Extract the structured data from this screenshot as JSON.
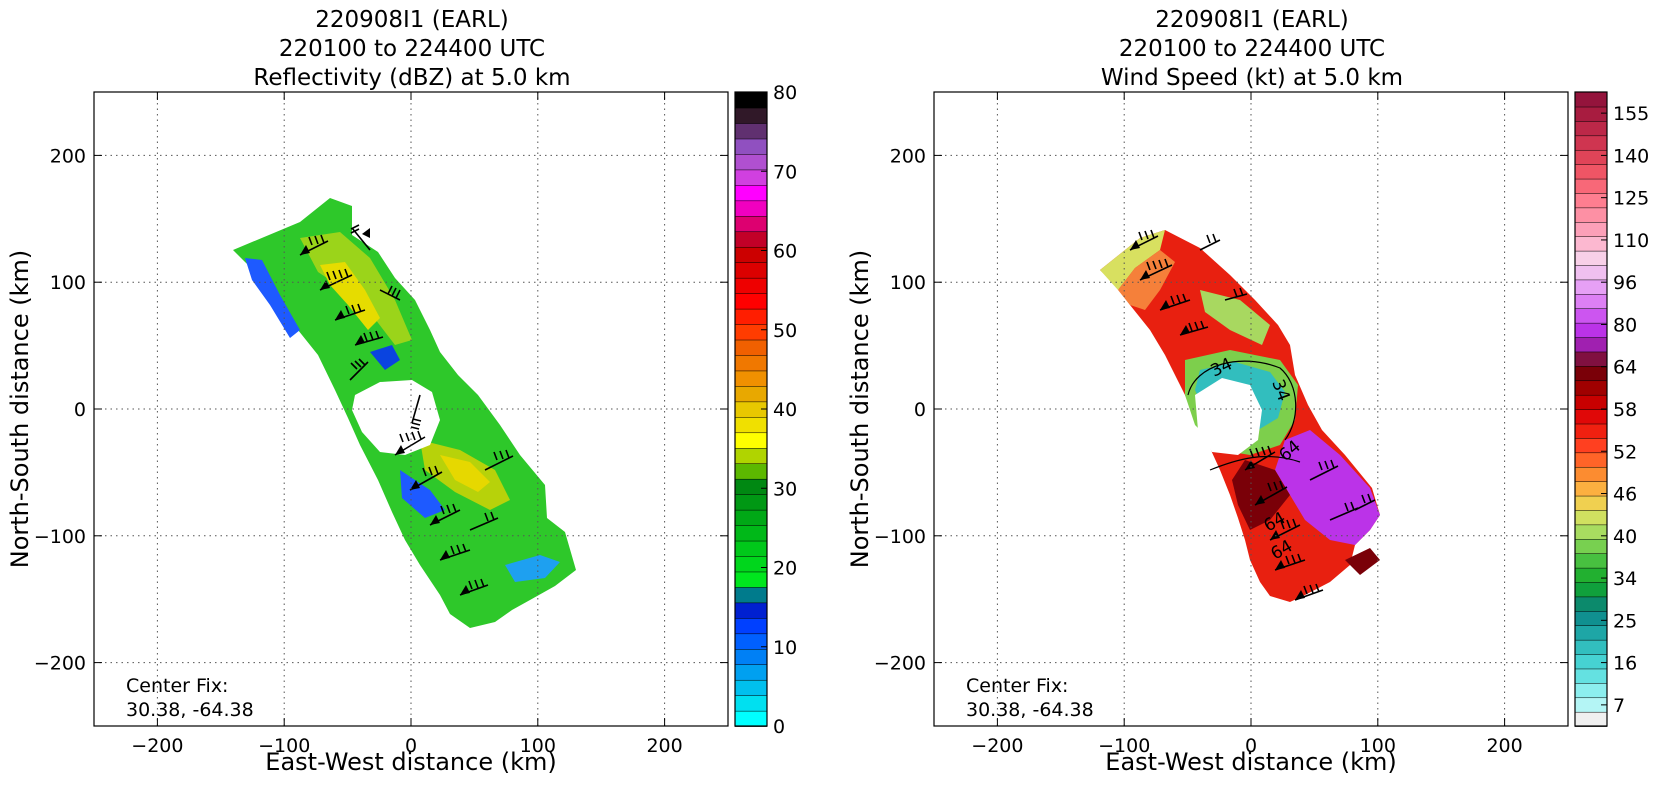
{
  "chart_data": [
    {
      "type": "heatmap",
      "title_lines": [
        "220908I1 (EARL)",
        "220100 to 224400 UTC",
        "Reflectivity (dBZ) at 5.0 km"
      ],
      "xlabel": "East-West distance (km)",
      "ylabel": "North-South distance (km)",
      "xlim": [
        -250,
        250
      ],
      "ylim": [
        -250,
        250
      ],
      "xticks": [
        "−200",
        "−100",
        "0",
        "100",
        "200"
      ],
      "yticks": [
        "−200",
        "−100",
        "0",
        "100",
        "200"
      ],
      "tick_values": [
        -200,
        -100,
        0,
        100,
        200
      ],
      "grid": true,
      "annotation_lines": [
        "Center Fix:",
        "30.38, -64.38"
      ],
      "colorbar": {
        "min": 0,
        "max": 80,
        "ticks": [
          "0",
          "10",
          "20",
          "30",
          "40",
          "50",
          "60",
          "70",
          "80"
        ],
        "tick_values": [
          0,
          10,
          20,
          30,
          40,
          50,
          60,
          70,
          80
        ],
        "colors": [
          "#00ffff",
          "#00e0f0",
          "#00c0ee",
          "#00a0f0",
          "#0080f5",
          "#0060ff",
          "#0040ff",
          "#0020d0",
          "#007b8c",
          "#00e61e",
          "#00d61c",
          "#00c81a",
          "#00b818",
          "#00a816",
          "#009814",
          "#008812",
          "#5cb800",
          "#b0d400",
          "#ffff00",
          "#f0e000",
          "#e8c800",
          "#e8a800",
          "#f09000",
          "#f07800",
          "#f06000",
          "#ff3c00",
          "#ff1e00",
          "#ff0000",
          "#ee0000",
          "#dc0000",
          "#cc0000",
          "#c20028",
          "#dd0070",
          "#f000c0",
          "#ff00ff",
          "#d040e0",
          "#b050d0",
          "#9050c0",
          "#603070",
          "#301828",
          "#000000"
        ]
      },
      "field_shape": "reflectivity-swath"
    },
    {
      "type": "heatmap",
      "title_lines": [
        "220908I1 (EARL)",
        "220100 to 224400 UTC",
        "Wind Speed (kt) at 5.0 km"
      ],
      "xlabel": "East-West distance (km)",
      "ylabel": "North-South distance (km)",
      "xlim": [
        -250,
        250
      ],
      "ylim": [
        -250,
        250
      ],
      "xticks": [
        "−200",
        "−100",
        "0",
        "100",
        "200"
      ],
      "yticks": [
        "−200",
        "−100",
        "0",
        "100",
        "200"
      ],
      "tick_values": [
        -200,
        -100,
        0,
        100,
        200
      ],
      "grid": true,
      "annotation_lines": [
        "Center Fix:",
        "30.38, -64.38"
      ],
      "contour_labels": [
        "34",
        "34",
        "64",
        "64",
        "64"
      ],
      "colorbar": {
        "ticks": [
          "7",
          "16",
          "25",
          "34",
          "40",
          "46",
          "52",
          "58",
          "64",
          "80",
          "96",
          "110",
          "125",
          "140",
          "155"
        ],
        "colors": [
          "#f0f0f0",
          "#b4f5f5",
          "#8ceeee",
          "#64e1e1",
          "#46d2d2",
          "#32bebe",
          "#1ea6a6",
          "#109090",
          "#0c8a6c",
          "#10a03c",
          "#22b030",
          "#48c040",
          "#78d050",
          "#a8dc60",
          "#d0e060",
          "#f0d050",
          "#fcb040",
          "#fc8c30",
          "#ff6428",
          "#ff4020",
          "#f02010",
          "#e00808",
          "#c80000",
          "#a00000",
          "#7a0008",
          "#801040",
          "#a020b0",
          "#bb33e8",
          "#cc55f0",
          "#dd80f4",
          "#e6a0f5",
          "#f0c0f0",
          "#f8d0e8",
          "#fcb8d0",
          "#fca0b8",
          "#fd90a4",
          "#fe7e90",
          "#f86878",
          "#ef5565",
          "#e04458",
          "#cf3550",
          "#bc2848",
          "#a81c40",
          "#94143c"
        ]
      },
      "field_shape": "windspeed-swath"
    }
  ]
}
